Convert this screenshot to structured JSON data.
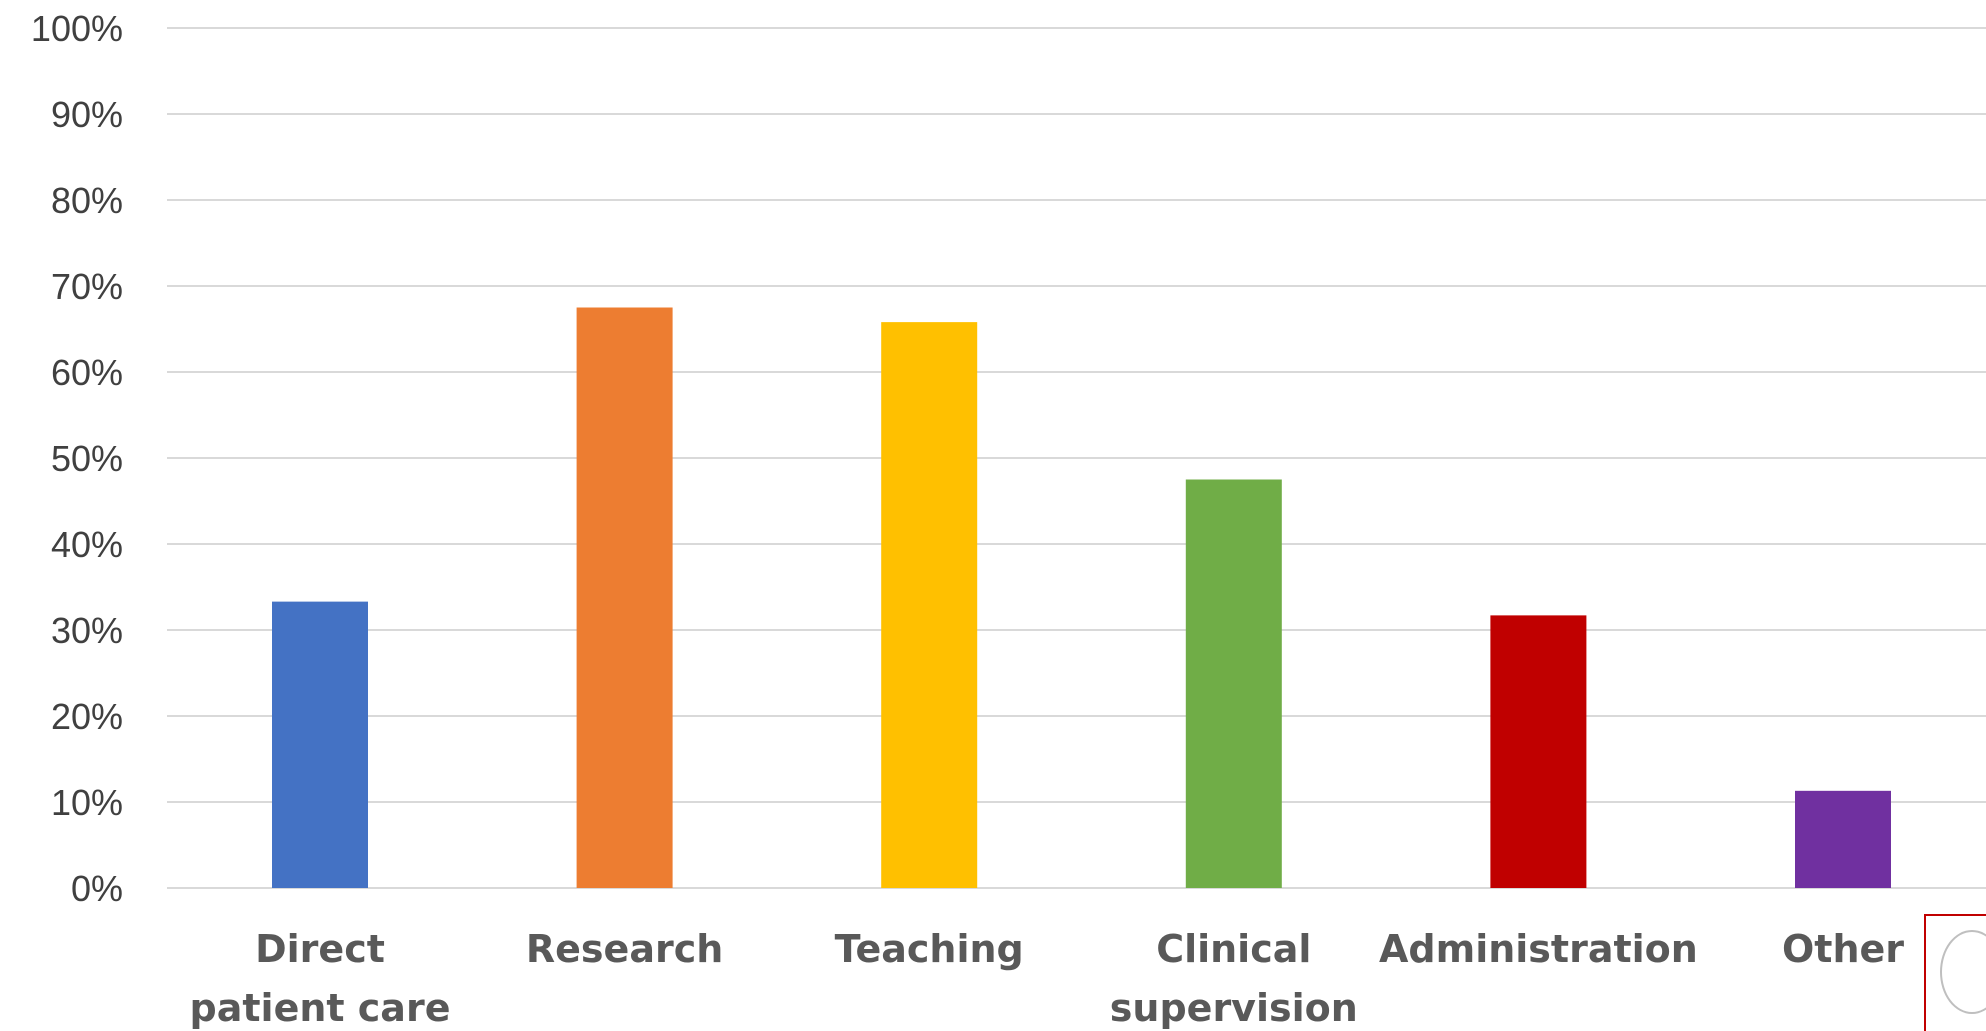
{
  "chart_data": {
    "type": "bar",
    "title": "",
    "xlabel": "",
    "ylabel": "",
    "ylim": [
      0,
      100
    ],
    "y_ticks": [
      "0%",
      "10%",
      "20%",
      "30%",
      "40%",
      "50%",
      "60%",
      "70%",
      "80%",
      "90%",
      "100%"
    ],
    "grid": true,
    "legend": "none",
    "categories": [
      [
        "Direct",
        "patient care"
      ],
      [
        "Research"
      ],
      [
        "Teaching"
      ],
      [
        "Clinical",
        "supervision"
      ],
      [
        "Administration"
      ],
      [
        "Other"
      ]
    ],
    "values": [
      33.3,
      67.5,
      65.8,
      47.5,
      31.7,
      11.3
    ],
    "colors": [
      "#4472c4",
      "#ed7d31",
      "#ffc000",
      "#70ad47",
      "#c00000",
      "#7030a0"
    ]
  }
}
